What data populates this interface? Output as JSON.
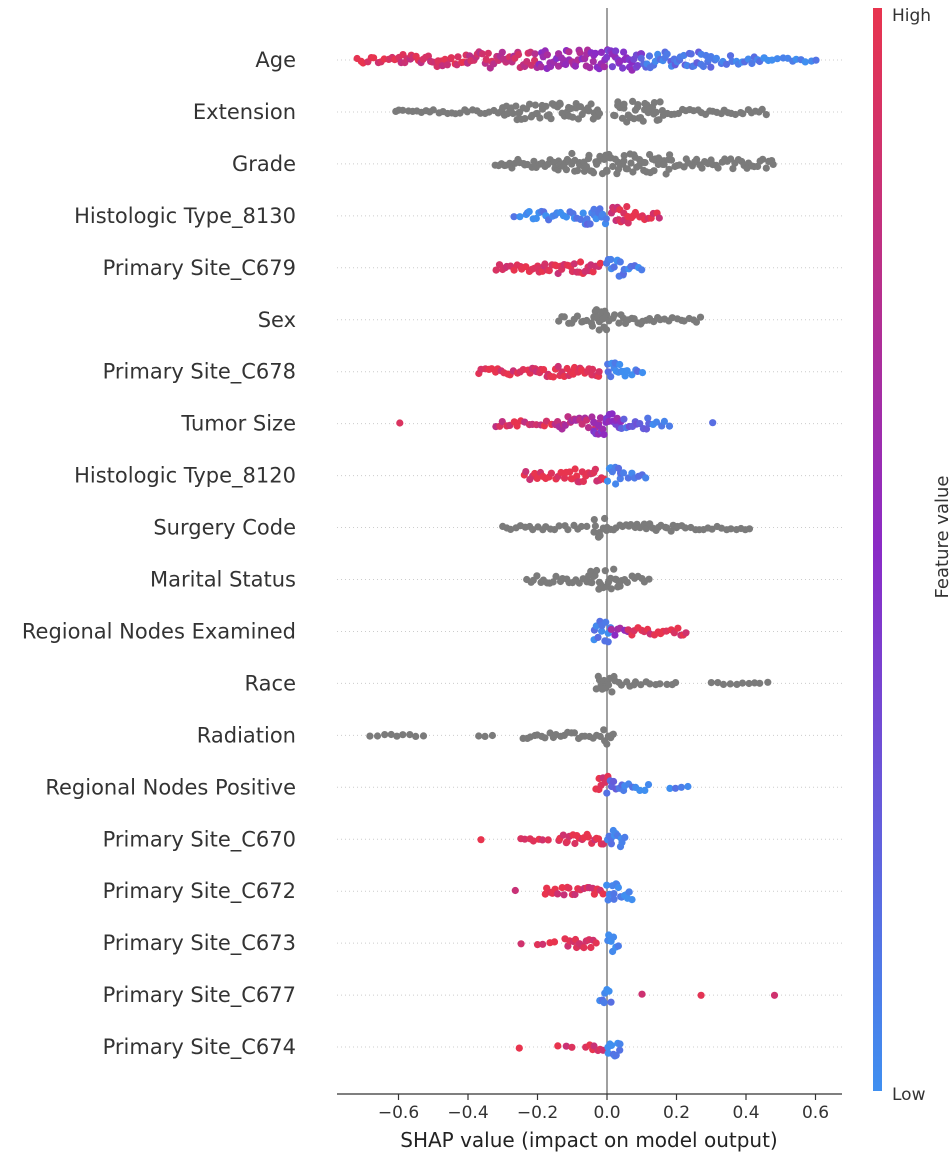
{
  "chart_data": {
    "type": "scatter",
    "subtype": "shap-beeswarm",
    "xlabel": "SHAP value (impact on model output)",
    "xlim": [
      -0.78,
      0.68
    ],
    "xticks": [
      -0.6,
      -0.4,
      -0.2,
      0.0,
      0.2,
      0.4,
      0.6
    ],
    "xtick_labels": [
      "−0.6",
      "−0.4",
      "−0.2",
      "0.0",
      "0.2",
      "0.4",
      "0.6"
    ],
    "colorbar": {
      "label": "Feature value",
      "high_label": "High",
      "low_label": "Low",
      "high_color": "#e8344e",
      "mid_color": "#8a2bc6",
      "low_color": "#3f8ff0"
    },
    "features": [
      {
        "name": "Age",
        "colored": true,
        "max_width": 11,
        "segments": [
          [
            -0.72,
            -0.62,
            0.95,
            0.35
          ],
          [
            -0.62,
            -0.4,
            0.9,
            0.6
          ],
          [
            -0.4,
            -0.2,
            0.8,
            0.75
          ],
          [
            -0.2,
            0.0,
            0.6,
            0.95
          ],
          [
            0.0,
            0.1,
            0.45,
            1.0
          ],
          [
            0.1,
            0.3,
            0.15,
            0.75
          ],
          [
            0.3,
            0.45,
            0.05,
            0.4
          ],
          [
            0.45,
            0.6,
            0.02,
            0.2
          ]
        ]
      },
      {
        "name": "Extension",
        "colored": false,
        "max_width": 11,
        "segments": [
          [
            -0.61,
            -0.3,
            0.5,
            0.2
          ],
          [
            -0.3,
            -0.02,
            0.5,
            0.8
          ],
          [
            0.02,
            0.16,
            0.5,
            1.0
          ],
          [
            0.16,
            0.46,
            0.5,
            0.25
          ]
        ]
      },
      {
        "name": "Grade",
        "colored": false,
        "max_width": 11,
        "segments": [
          [
            -0.32,
            -0.14,
            0.5,
            0.45
          ],
          [
            -0.14,
            0.0,
            0.5,
            0.95
          ],
          [
            0.0,
            0.18,
            0.5,
            1.0
          ],
          [
            0.18,
            0.48,
            0.5,
            0.45
          ]
        ]
      },
      {
        "name": "Histologic Type_8130",
        "colored": true,
        "max_width": 10,
        "segments": [
          [
            -0.27,
            -0.23,
            0.05,
            0.15
          ],
          [
            -0.23,
            -0.06,
            0.05,
            0.45
          ],
          [
            -0.06,
            0.0,
            0.1,
            0.85
          ],
          [
            0.01,
            0.06,
            0.92,
            1.0
          ],
          [
            0.06,
            0.15,
            0.95,
            0.45
          ]
        ]
      },
      {
        "name": "Primary Site_C679",
        "colored": true,
        "max_width": 9,
        "segments": [
          [
            -0.32,
            -0.2,
            0.95,
            0.4
          ],
          [
            -0.2,
            -0.02,
            0.95,
            0.65
          ],
          [
            0.0,
            0.05,
            0.05,
            1.0
          ],
          [
            0.05,
            0.1,
            0.05,
            0.35
          ]
        ]
      },
      {
        "name": "Sex",
        "colored": false,
        "max_width": 11,
        "segments": [
          [
            -0.14,
            -0.01,
            0.5,
            0.35
          ],
          [
            -0.04,
            0.0,
            0.5,
            1.0
          ],
          [
            0.0,
            0.12,
            0.5,
            0.45
          ],
          [
            0.12,
            0.27,
            0.5,
            0.25
          ]
        ]
      },
      {
        "name": "Primary Site_C678",
        "colored": true,
        "max_width": 9,
        "segments": [
          [
            -0.37,
            -0.22,
            0.95,
            0.35
          ],
          [
            -0.22,
            -0.02,
            0.95,
            0.6
          ],
          [
            0.0,
            0.05,
            0.05,
            1.0
          ],
          [
            0.05,
            0.1,
            0.05,
            0.35
          ]
        ]
      },
      {
        "name": "Tumor Size",
        "colored": true,
        "max_width": 11,
        "segments": [
          [
            -0.6,
            -0.59,
            0.95,
            0.1
          ],
          [
            -0.32,
            -0.15,
            0.9,
            0.3
          ],
          [
            -0.15,
            -0.02,
            0.75,
            0.65
          ],
          [
            -0.04,
            0.04,
            0.5,
            1.0
          ],
          [
            0.04,
            0.12,
            0.2,
            0.5
          ],
          [
            0.12,
            0.18,
            0.1,
            0.25
          ],
          [
            0.3,
            0.31,
            0.05,
            0.1
          ]
        ]
      },
      {
        "name": "Histologic Type_8120",
        "colored": true,
        "max_width": 9,
        "segments": [
          [
            -0.24,
            -0.1,
            0.95,
            0.45
          ],
          [
            -0.1,
            -0.01,
            0.95,
            0.75
          ],
          [
            0.0,
            0.04,
            0.05,
            1.0
          ],
          [
            0.04,
            0.11,
            0.05,
            0.35
          ]
        ]
      },
      {
        "name": "Surgery Code",
        "colored": false,
        "max_width": 11,
        "segments": [
          [
            -0.3,
            -0.06,
            0.5,
            0.2
          ],
          [
            -0.04,
            0.0,
            0.5,
            1.0
          ],
          [
            0.0,
            0.2,
            0.5,
            0.4
          ],
          [
            0.2,
            0.41,
            0.5,
            0.2
          ]
        ]
      },
      {
        "name": "Marital Status",
        "colored": false,
        "max_width": 11,
        "segments": [
          [
            -0.23,
            -0.05,
            0.5,
            0.35
          ],
          [
            -0.05,
            0.04,
            0.5,
            1.0
          ],
          [
            0.04,
            0.12,
            0.5,
            0.35
          ]
        ]
      },
      {
        "name": "Regional Nodes Examined",
        "colored": true,
        "max_width": 11,
        "segments": [
          [
            -0.04,
            0.01,
            0.05,
            1.0
          ],
          [
            0.01,
            0.06,
            0.6,
            0.4
          ],
          [
            0.06,
            0.23,
            0.95,
            0.35
          ]
        ]
      },
      {
        "name": "Race",
        "colored": false,
        "max_width": 11,
        "segments": [
          [
            -0.03,
            0.02,
            0.5,
            1.0
          ],
          [
            0.02,
            0.08,
            0.5,
            0.3
          ],
          [
            0.08,
            0.2,
            0.5,
            0.15
          ],
          [
            0.3,
            0.46,
            0.5,
            0.1
          ]
        ]
      },
      {
        "name": "Radiation",
        "colored": false,
        "max_width": 11,
        "segments": [
          [
            -0.68,
            -0.53,
            0.5,
            0.1
          ],
          [
            -0.37,
            -0.33,
            0.5,
            0.1
          ],
          [
            -0.24,
            -0.02,
            0.5,
            0.3
          ],
          [
            -0.01,
            0.02,
            0.5,
            1.0
          ]
        ]
      },
      {
        "name": "Regional Nodes Positive",
        "colored": true,
        "max_width": 11,
        "segments": [
          [
            -0.03,
            0.0,
            0.95,
            1.0
          ],
          [
            0.0,
            0.05,
            0.2,
            0.6
          ],
          [
            0.05,
            0.12,
            0.05,
            0.3
          ],
          [
            0.18,
            0.23,
            0.05,
            0.15
          ]
        ]
      },
      {
        "name": "Primary Site_C670",
        "colored": true,
        "max_width": 9,
        "segments": [
          [
            -0.37,
            -0.36,
            0.95,
            0.1
          ],
          [
            -0.25,
            -0.17,
            0.95,
            0.2
          ],
          [
            -0.14,
            -0.01,
            0.95,
            0.55
          ],
          [
            0.0,
            0.05,
            0.05,
            1.0
          ]
        ]
      },
      {
        "name": "Primary Site_C672",
        "colored": true,
        "max_width": 9,
        "segments": [
          [
            -0.27,
            -0.26,
            0.95,
            0.1
          ],
          [
            -0.18,
            -0.01,
            0.95,
            0.45
          ],
          [
            0.0,
            0.07,
            0.05,
            1.0
          ]
        ]
      },
      {
        "name": "Primary Site_C673",
        "colored": true,
        "max_width": 9,
        "segments": [
          [
            -0.25,
            -0.24,
            0.95,
            0.1
          ],
          [
            -0.2,
            -0.15,
            0.95,
            0.2
          ],
          [
            -0.12,
            -0.03,
            0.95,
            0.55
          ],
          [
            0.0,
            0.03,
            0.05,
            1.0
          ]
        ]
      },
      {
        "name": "Primary Site_C677",
        "colored": true,
        "max_width": 11,
        "segments": [
          [
            -0.02,
            0.01,
            0.05,
            1.0
          ],
          [
            0.1,
            0.1,
            0.95,
            0.1
          ],
          [
            0.27,
            0.27,
            0.95,
            0.1
          ],
          [
            0.48,
            0.48,
            0.95,
            0.1
          ]
        ]
      },
      {
        "name": "Primary Site_C674",
        "colored": true,
        "max_width": 9,
        "segments": [
          [
            -0.26,
            -0.25,
            0.95,
            0.15
          ],
          [
            -0.14,
            -0.1,
            0.95,
            0.15
          ],
          [
            -0.06,
            -0.01,
            0.95,
            0.45
          ],
          [
            0.0,
            0.04,
            0.05,
            1.0
          ]
        ]
      }
    ]
  }
}
